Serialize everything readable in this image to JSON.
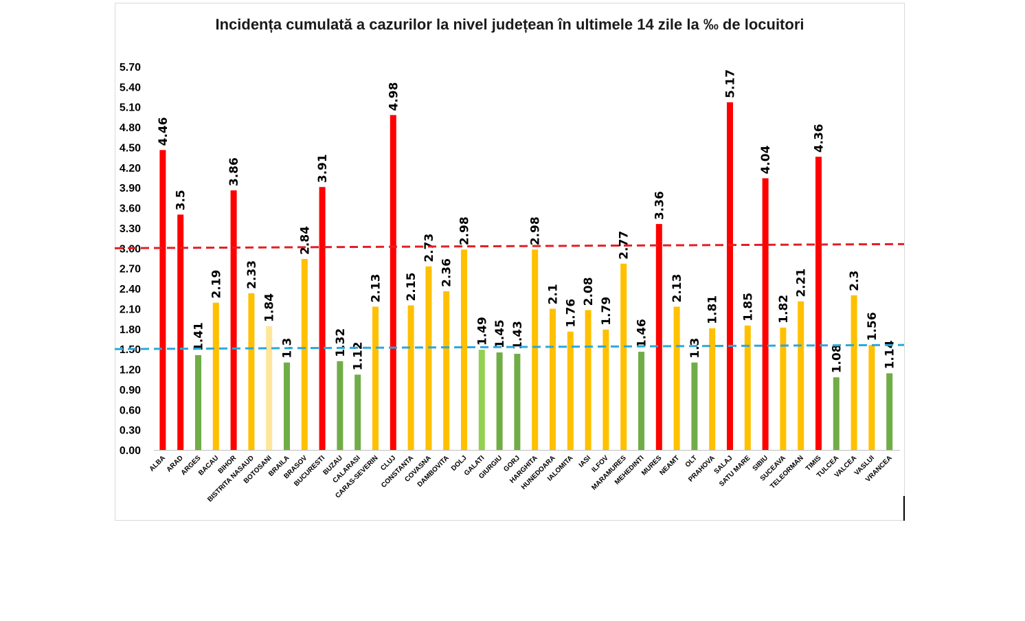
{
  "chart_data": {
    "type": "bar",
    "title": "Incidența cumulată a cazurilor la nivel județean în ultimele 14 zile la ‰ de locuitori",
    "xlabel": "",
    "ylabel": "",
    "ylim": [
      0,
      5.7
    ],
    "yticks": [
      "0.00",
      "0.30",
      "0.60",
      "0.90",
      "1.20",
      "1.50",
      "1.80",
      "2.10",
      "2.40",
      "2.70",
      "3.00",
      "3.30",
      "3.60",
      "3.90",
      "4.20",
      "4.50",
      "4.80",
      "5.10",
      "5.40",
      "5.70"
    ],
    "grid": false,
    "legend": "none",
    "categories": [
      "ALBA",
      "ARAD",
      "ARGES",
      "BACAU",
      "BIHOR",
      "BISTRITA NASAUD",
      "BOTOSANI",
      "BRAILA",
      "BRASOV",
      "BUCURESTI",
      "BUZAU",
      "CALARASI",
      "CARAS-SEVERIN",
      "CLUJ",
      "CONSTANTA",
      "COVASNA",
      "DAMBOVITA",
      "DOLJ",
      "GALATI",
      "GIURGIU",
      "GORJ",
      "HARGHITA",
      "HUNEDOARA",
      "IALOMITA",
      "IASI",
      "ILFOV",
      "MARAMURES",
      "MEHEDINTI",
      "MURES",
      "NEAMT",
      "OLT",
      "PRAHOVA",
      "SALAJ",
      "SATU MARE",
      "SIBIU",
      "SUCEAVA",
      "TELEORMAN",
      "TIMIS",
      "TULCEA",
      "VALCEA",
      "VASLUI",
      "VRANCEA"
    ],
    "values": [
      4.46,
      3.5,
      1.41,
      2.19,
      3.86,
      2.33,
      1.84,
      1.3,
      2.84,
      3.91,
      1.32,
      1.12,
      2.13,
      4.98,
      2.15,
      2.73,
      2.36,
      2.98,
      1.49,
      1.45,
      1.43,
      2.98,
      2.1,
      1.76,
      2.08,
      1.79,
      2.77,
      1.46,
      3.36,
      2.13,
      1.3,
      1.81,
      5.17,
      1.85,
      4.04,
      1.82,
      2.21,
      4.36,
      1.08,
      2.3,
      1.56,
      1.14
    ],
    "labels": [
      "4.46",
      "3.5",
      "1.41",
      "2.19",
      "3.86",
      "2.33",
      "1.84",
      "1.3",
      "2.84",
      "3.91",
      "1.32",
      "1.12",
      "2.13",
      "4.98",
      "2.15",
      "2.73",
      "2.36",
      "2.98",
      "1.49",
      "1.45",
      "1.43",
      "2.98",
      "2.1",
      "1.76",
      "2.08",
      "1.79",
      "2.77",
      "1.46",
      "3.36",
      "2.13",
      "1.3",
      "1.81",
      "5.17",
      "1.85",
      "4.04",
      "1.82",
      "2.21",
      "4.36",
      "1.08",
      "2.3",
      "1.56",
      "1.14"
    ],
    "bar_colors": [
      "#ff0000",
      "#ff0000",
      "#70ad47",
      "#ffc000",
      "#ff0000",
      "#ffc000",
      "#ffe699",
      "#70ad47",
      "#ffc000",
      "#ff0000",
      "#70ad47",
      "#70ad47",
      "#ffc000",
      "#ff0000",
      "#ffc000",
      "#ffc000",
      "#ffc000",
      "#ffc000",
      "#92d050",
      "#70ad47",
      "#70ad47",
      "#ffc000",
      "#ffc000",
      "#ffc000",
      "#ffc000",
      "#ffc000",
      "#ffc000",
      "#70ad47",
      "#ff0000",
      "#ffc000",
      "#70ad47",
      "#ffc000",
      "#ff0000",
      "#ffc000",
      "#ff0000",
      "#ffc000",
      "#ffc000",
      "#ff0000",
      "#70ad47",
      "#ffc000",
      "#ffc000",
      "#70ad47"
    ],
    "thresholds": [
      {
        "value": 3.0,
        "color": "#e31e24",
        "style": "dashed"
      },
      {
        "value": 1.5,
        "color": "#2aa7dd",
        "style": "dashed"
      }
    ]
  }
}
